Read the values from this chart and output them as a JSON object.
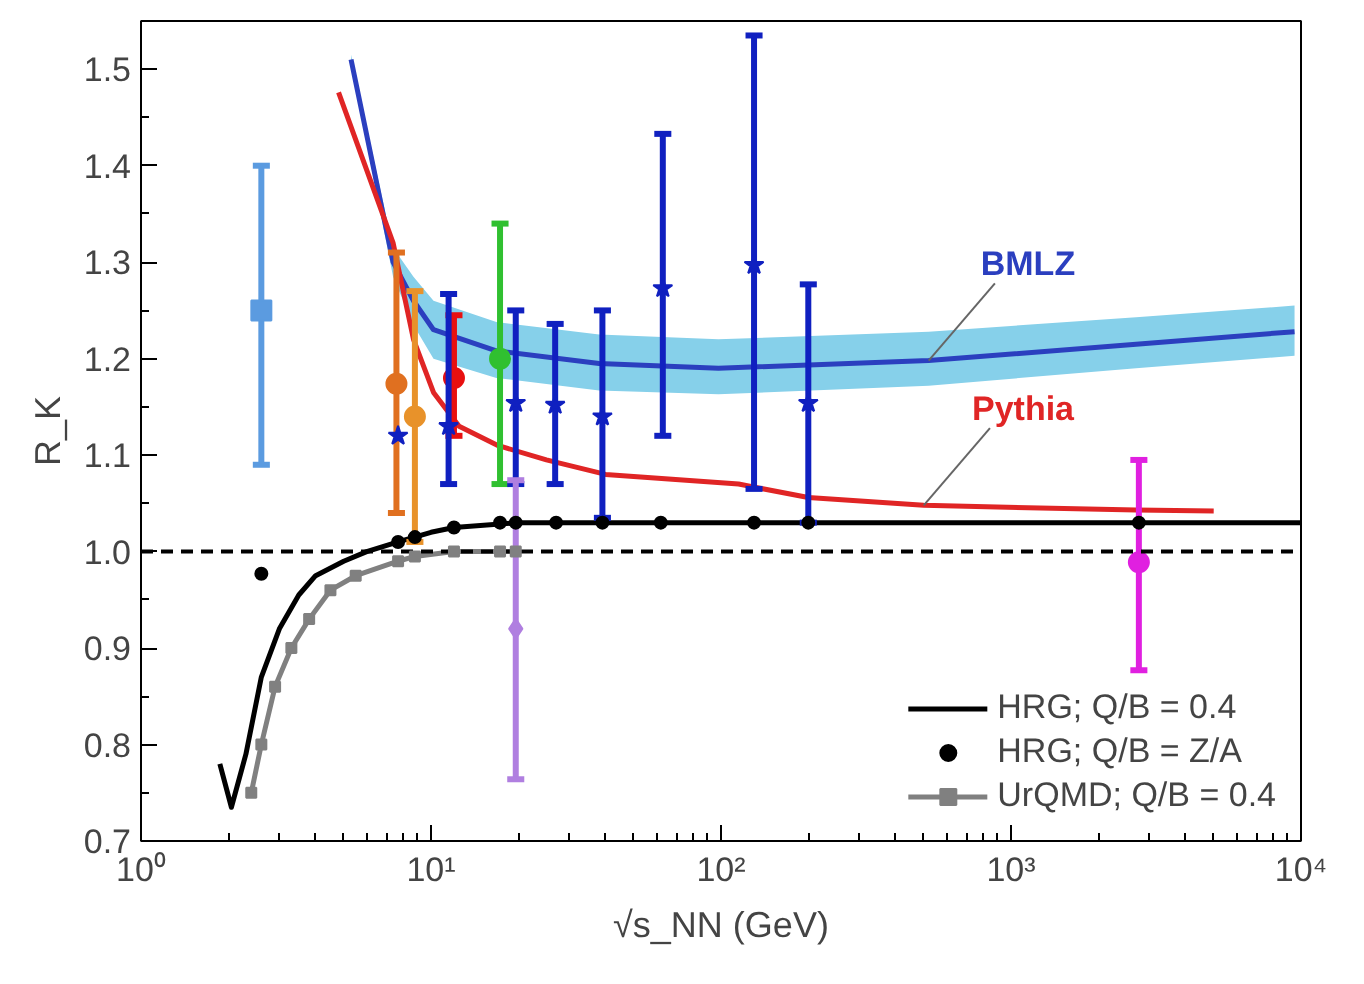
{
  "chart_data": {
    "type": "scatter",
    "xlabel": "√s_NN (GeV)",
    "ylabel": "R_K",
    "log": "x",
    "xlim": [
      1,
      10000
    ],
    "ylim": [
      0.7,
      1.55
    ],
    "xticks": [
      {
        "value": 1,
        "label": "10⁰"
      },
      {
        "value": 10,
        "label": "10¹"
      },
      {
        "value": 100,
        "label": "10²"
      },
      {
        "value": 1000,
        "label": "10³"
      },
      {
        "value": 10000,
        "label": "10⁴"
      }
    ],
    "yticks": [
      0.7,
      0.8,
      0.9,
      {
        "value": 1.0,
        "label": "1.0"
      },
      1.1,
      1.2,
      1.3,
      1.4,
      1.5
    ],
    "legend": "bottom right",
    "grid": false,
    "ref_lines": [
      {
        "axis": "y",
        "value": 1.0,
        "color": "#000000",
        "line_style": "dashed"
      }
    ],
    "series": [
      {
        "name": "BMLZ",
        "type": "line",
        "color": "#2b3fbf",
        "x": [
          5.3,
          7.4,
          8.7,
          10.2,
          16.8,
          38,
          98,
          520,
          2700,
          9500
        ],
        "values": [
          1.51,
          1.3,
          1.26,
          1.23,
          1.208,
          1.195,
          1.19,
          1.198,
          1.215,
          1.228
        ],
        "lower": [
          1.505,
          1.285,
          1.235,
          1.2,
          1.18,
          1.167,
          1.163,
          1.172,
          1.19,
          1.203
        ],
        "upper": [
          1.515,
          1.315,
          1.285,
          1.26,
          1.238,
          1.225,
          1.22,
          1.228,
          1.243,
          1.255
        ]
      },
      {
        "name": "Pythia",
        "type": "line",
        "color": "#e02525",
        "x": [
          4.8,
          7.4,
          8.7,
          10.2,
          12.5,
          17,
          25,
          40,
          115,
          200,
          500,
          2700,
          5000
        ],
        "values": [
          1.476,
          1.32,
          1.22,
          1.165,
          1.13,
          1.11,
          1.095,
          1.08,
          1.07,
          1.056,
          1.048,
          1.043,
          1.042
        ]
      },
      {
        "name": "HRG; Q/B = 0.4",
        "type": "line",
        "color": "#000000",
        "x": [
          1.87,
          2.05,
          2.3,
          2.6,
          3,
          3.5,
          4,
          5,
          6,
          7.7,
          10,
          12,
          20,
          40,
          10000
        ],
        "values": [
          0.78,
          0.735,
          0.79,
          0.87,
          0.92,
          0.955,
          0.975,
          0.99,
          1.0,
          1.01,
          1.02,
          1.025,
          1.03,
          1.03,
          1.03
        ]
      },
      {
        "name": "HRG; Q/B = Z/A",
        "marker": "circle",
        "color": "#000000",
        "x": [
          2.6,
          7.7,
          8.8,
          12,
          17.3,
          19.6,
          27,
          39,
          62,
          130,
          200,
          2760
        ],
        "values": [
          0.977,
          1.01,
          1.015,
          1.025,
          1.03,
          1.03,
          1.03,
          1.03,
          1.03,
          1.03,
          1.03,
          1.03
        ]
      },
      {
        "name": "UrQMD; Q/B = 0.4",
        "type": "line",
        "marker": "square",
        "color": "#808080",
        "x": [
          2.4,
          2.6,
          2.9,
          3.3,
          3.8,
          4.5,
          5.5,
          7.7,
          8.8,
          12,
          17.3,
          19.6
        ],
        "values": [
          0.75,
          0.8,
          0.86,
          0.9,
          0.93,
          0.96,
          0.975,
          0.99,
          0.995,
          1.0,
          1.0,
          1.0
        ]
      },
      {
        "marker": "square",
        "color": "#5b9be0",
        "x": [
          2.6
        ],
        "values": [
          1.25
        ],
        "errors": [
          [
            1.09,
            1.4
          ]
        ]
      },
      {
        "marker": "circle",
        "color": "#e07020",
        "x": [
          7.6
        ],
        "values": [
          1.174
        ],
        "errors": [
          [
            1.04,
            1.31
          ]
        ]
      },
      {
        "marker": "circle",
        "color": "#e8922a",
        "x": [
          8.8
        ],
        "values": [
          1.14
        ],
        "errors": [
          [
            1.01,
            1.27
          ]
        ]
      },
      {
        "marker": "circle",
        "color": "#e81010",
        "x": [
          12
        ],
        "values": [
          1.18
        ],
        "errors": [
          [
            1.12,
            1.245
          ]
        ]
      },
      {
        "marker": "circle",
        "color": "#30c030",
        "x": [
          17.3
        ],
        "values": [
          1.2
        ],
        "errors": [
          [
            1.07,
            1.34
          ]
        ]
      },
      {
        "marker": "star",
        "color": "#1020c0",
        "x": [
          7.7,
          11.5,
          19.6,
          26.8,
          39,
          63,
          130,
          200
        ],
        "values": [
          1.12,
          1.13,
          1.154,
          1.152,
          1.14,
          1.273,
          1.297,
          1.154
        ],
        "errors": [
          null,
          [
            1.07,
            1.267
          ],
          [
            1.07,
            1.25
          ],
          [
            1.07,
            1.236
          ],
          [
            1.035,
            1.25
          ],
          [
            1.12,
            1.433
          ],
          [
            1.065,
            1.535
          ],
          [
            1.03,
            1.277
          ]
        ]
      },
      {
        "marker": "diamond",
        "color": "#b07fe0",
        "x": [
          19.6
        ],
        "values": [
          0.92
        ],
        "errors": [
          [
            0.764,
            1.074
          ]
        ]
      },
      {
        "marker": "circle",
        "color": "#e020e0",
        "x": [
          2760
        ],
        "values": [
          0.989
        ],
        "errors": [
          [
            0.877,
            1.095
          ]
        ]
      }
    ]
  }
}
